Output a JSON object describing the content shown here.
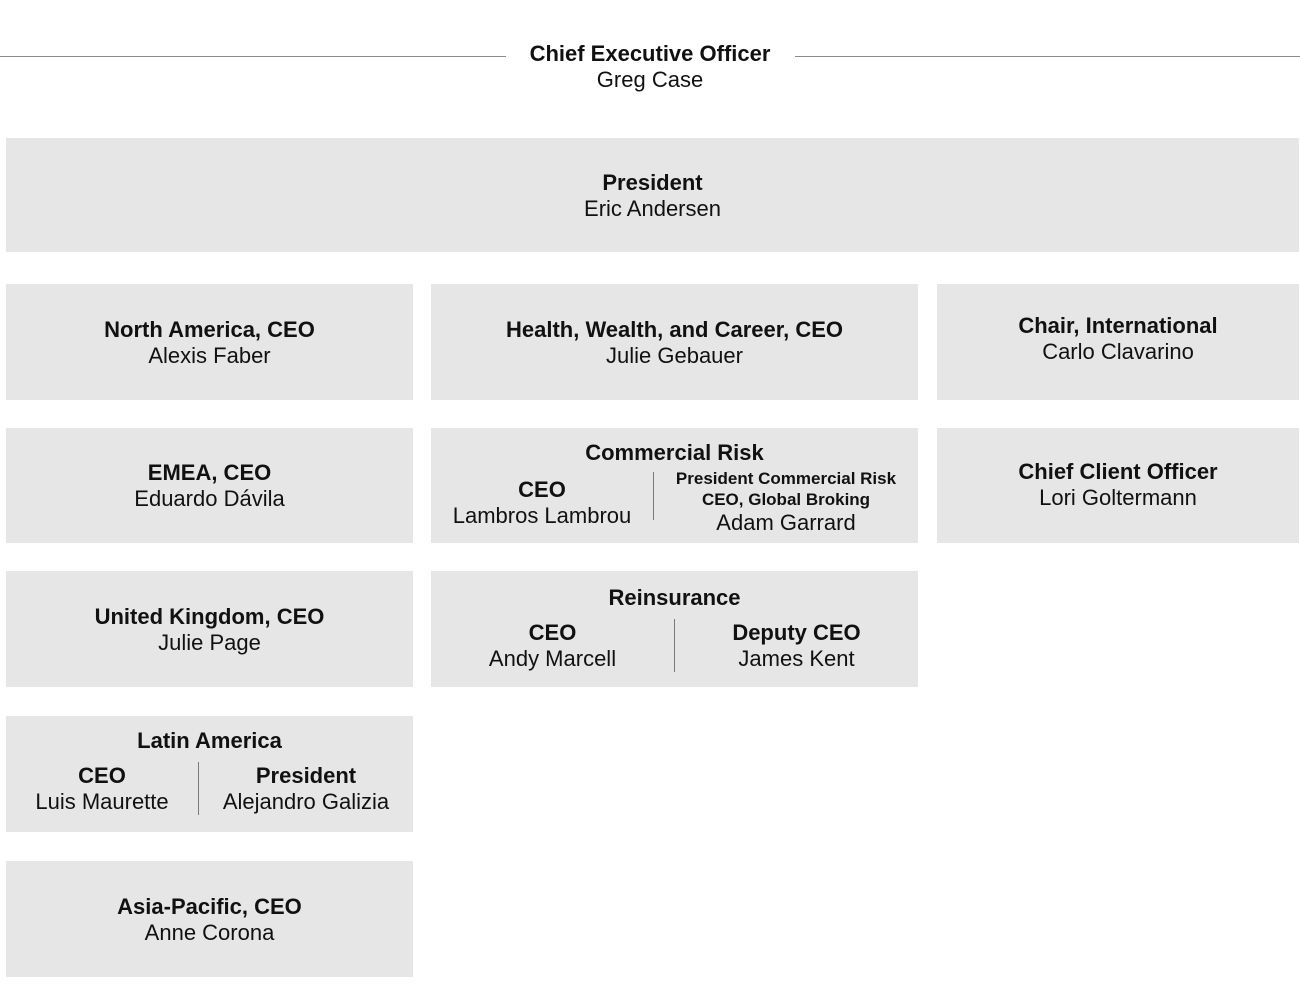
{
  "ceo": {
    "title": "Chief Executive Officer",
    "name": "Greg Case"
  },
  "president": {
    "title": "President",
    "name": "Eric Andersen"
  },
  "north_america": {
    "title": "North America, CEO",
    "name": "Alexis Faber"
  },
  "hwc": {
    "title": "Health, Wealth, and Career, CEO",
    "name": "Julie Gebauer"
  },
  "chair_international": {
    "title": "Chair, International",
    "name": "Carlo Clavarino"
  },
  "emea": {
    "title": "EMEA, CEO",
    "name": "Eduardo Dávila"
  },
  "commercial_risk": {
    "title": "Commercial Risk",
    "left": {
      "title": "CEO",
      "name": "Lambros Lambrou"
    },
    "right": {
      "title_line1": "President Commercial Risk",
      "title_line2": "CEO, Global Broking",
      "name": "Adam Garrard"
    }
  },
  "chief_client_officer": {
    "title": "Chief Client Officer",
    "name": "Lori Goltermann"
  },
  "uk": {
    "title": "United Kingdom, CEO",
    "name": "Julie Page"
  },
  "reinsurance": {
    "title": "Reinsurance",
    "left": {
      "title": "CEO",
      "name": "Andy Marcell"
    },
    "right": {
      "title": "Deputy CEO",
      "name": "James Kent"
    }
  },
  "latin_america": {
    "title": "Latin America",
    "left": {
      "title": "CEO",
      "name": "Luis Maurette"
    },
    "right": {
      "title": "President",
      "name": "Alejandro Galizia"
    }
  },
  "asia_pacific": {
    "title": "Asia-Pacific, CEO",
    "name": "Anne Corona"
  }
}
